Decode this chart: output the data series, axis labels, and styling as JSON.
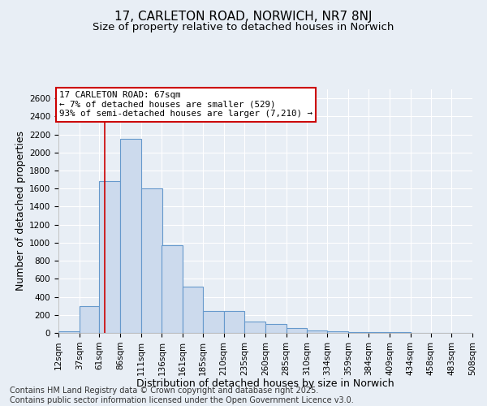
{
  "title": "17, CARLETON ROAD, NORWICH, NR7 8NJ",
  "subtitle": "Size of property relative to detached houses in Norwich",
  "xlabel": "Distribution of detached houses by size in Norwich",
  "ylabel": "Number of detached properties",
  "footnote1": "Contains HM Land Registry data © Crown copyright and database right 2025.",
  "footnote2": "Contains public sector information licensed under the Open Government Licence v3.0.",
  "property_size": 67,
  "property_line_color": "#cc0000",
  "bar_edge_color": "#6699cc",
  "bar_face_color": "#ccdaed",
  "annotation_text": "17 CARLETON ROAD: 67sqm\n← 7% of detached houses are smaller (529)\n93% of semi-detached houses are larger (7,210) →",
  "annotation_box_color": "#ffffff",
  "annotation_border_color": "#cc0000",
  "bins": [
    12,
    37,
    61,
    86,
    111,
    136,
    161,
    185,
    210,
    235,
    260,
    285,
    310,
    334,
    359,
    384,
    409,
    434,
    458,
    483,
    508
  ],
  "counts": [
    20,
    300,
    1680,
    2150,
    1600,
    970,
    510,
    240,
    240,
    130,
    100,
    50,
    25,
    18,
    12,
    8,
    5,
    3,
    2,
    1
  ],
  "ylim": [
    0,
    2700
  ],
  "yticks": [
    0,
    200,
    400,
    600,
    800,
    1000,
    1200,
    1400,
    1600,
    1800,
    2000,
    2200,
    2400,
    2600
  ],
  "background_color": "#e8eef5",
  "plot_bg_color": "#e8eef5",
  "grid_color": "#ffffff",
  "title_fontsize": 11,
  "subtitle_fontsize": 9.5,
  "axis_label_fontsize": 9,
  "tick_fontsize": 7.5,
  "footnote_fontsize": 7
}
